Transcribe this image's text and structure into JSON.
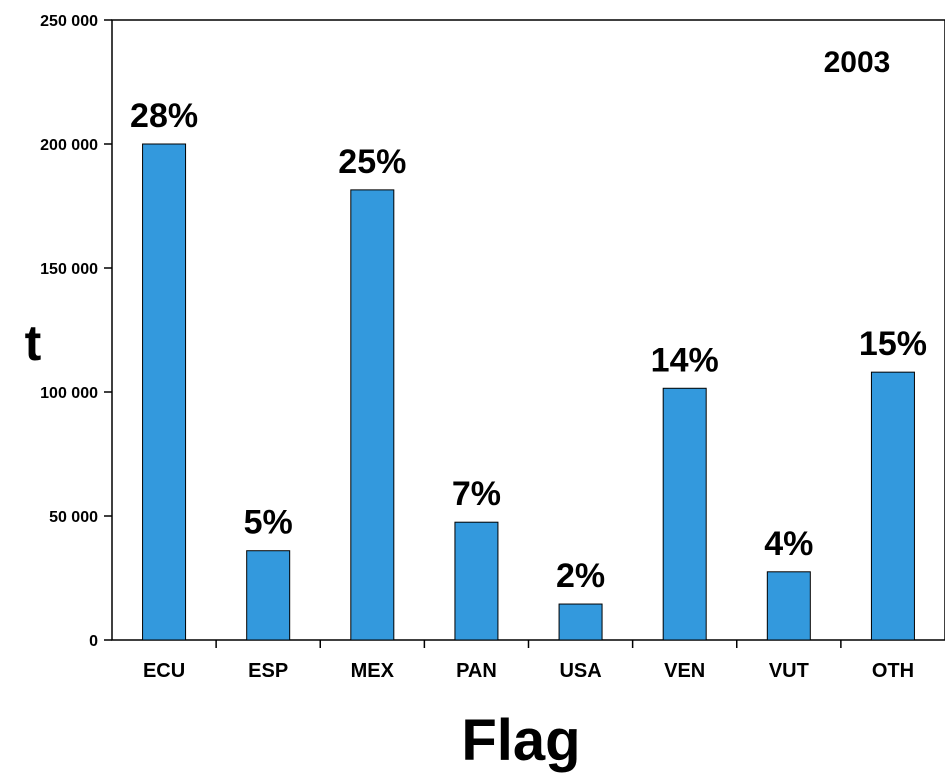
{
  "chart_data": {
    "type": "bar",
    "categories": [
      "ECU",
      "ESP",
      "MEX",
      "PAN",
      "USA",
      "VEN",
      "VUT",
      "OTH"
    ],
    "values": [
      200000,
      36000,
      181500,
      47500,
      14500,
      101500,
      27500,
      108000
    ],
    "data_labels": [
      "28%",
      "5%",
      "25%",
      "7%",
      "2%",
      "14%",
      "4%",
      "15%"
    ],
    "annotation": "2003",
    "xlabel": "Flag",
    "ylabel": "t",
    "ylim": [
      0,
      250000
    ],
    "yticks": [
      0,
      50000,
      100000,
      150000,
      200000,
      250000
    ],
    "ytick_labels": [
      "0",
      "50 000",
      "100 000",
      "150 000",
      "200 000",
      "250 000"
    ],
    "grid": false,
    "bar_color": "#3399dd"
  }
}
